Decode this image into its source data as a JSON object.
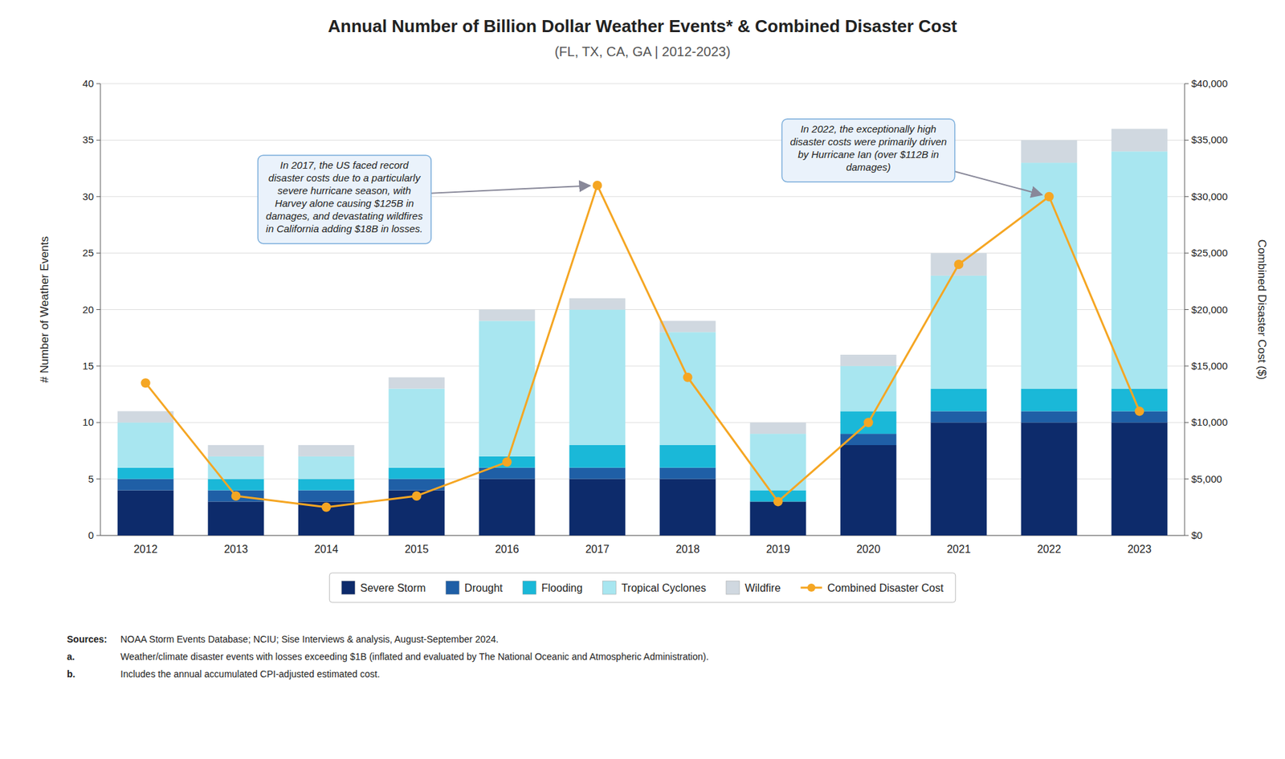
{
  "chart_data": {
    "type": "bar",
    "title": "Annual Number of Billion Dollar Weather Events* & Combined Disaster Cost",
    "subtitle": "(FL, TX, CA, GA | 2012-2023)",
    "categories": [
      "2012",
      "2013",
      "2014",
      "2015",
      "2016",
      "2017",
      "2018",
      "2019",
      "2020",
      "2021",
      "2022",
      "2023"
    ],
    "stacked": true,
    "series": [
      {
        "name": "Severe Storm",
        "color": "#0d2b6b",
        "values": [
          4,
          3,
          3,
          4,
          5,
          5,
          5,
          3,
          8,
          10,
          10,
          10
        ]
      },
      {
        "name": "Drought",
        "color": "#1f5fa6",
        "values": [
          1,
          1,
          1,
          1,
          1,
          1,
          1,
          0,
          1,
          1,
          1,
          1
        ]
      },
      {
        "name": "Flooding",
        "color": "#1ab8d8",
        "values": [
          1,
          1,
          1,
          1,
          1,
          2,
          2,
          1,
          2,
          2,
          2,
          2
        ]
      },
      {
        "name": "Tropical Cyclones",
        "color": "#a8e6f0",
        "values": [
          4,
          2,
          2,
          7,
          12,
          12,
          10,
          5,
          4,
          10,
          20,
          21
        ]
      },
      {
        "name": "Wildfire",
        "color": "#d0d8e0",
        "values": [
          1,
          1,
          1,
          1,
          1,
          1,
          1,
          1,
          1,
          2,
          2,
          2
        ]
      },
      {
        "name": "Combined Disaster Cost",
        "type": "line",
        "axis": "y2",
        "color": "#f5a623",
        "marker": "circle",
        "values": [
          13500,
          3500,
          2500,
          3500,
          6500,
          31000,
          14000,
          3000,
          10000,
          24000,
          30000,
          11000
        ]
      }
    ],
    "ylabel": "# Number of Weather Events",
    "y2label": "Combined Disaster Cost ($)",
    "ylim": [
      0,
      40
    ],
    "yticks": [
      0,
      5,
      10,
      15,
      20,
      25,
      30,
      35,
      40
    ],
    "y2lim": [
      0,
      40000
    ],
    "y2ticks": [
      {
        "value": 0,
        "label": "$0"
      },
      {
        "value": 5000,
        "label": "$5,000"
      },
      {
        "value": 10000,
        "label": "$10,000"
      },
      {
        "value": 15000,
        "label": "$15,000"
      },
      {
        "value": 20000,
        "label": "$20,000"
      },
      {
        "value": 25000,
        "label": "$25,000"
      },
      {
        "value": 30000,
        "label": "$30,000"
      },
      {
        "value": 35000,
        "label": "$35,000"
      },
      {
        "value": 40000,
        "label": "$40,000"
      }
    ],
    "grid": true,
    "legend": "bottom",
    "annotations": [
      {
        "text": "In 2017, the US faced record\ndisaster costs due to a particularly\nsevere hurricane season, with\nHarvey alone causing $125B in\ndamages, and devastating wildfires\nin California adding $18B in losses.",
        "x": "2017"
      },
      {
        "text": "In 2022, the exceptionally high\ndisaster costs were primarily driven\nby Hurricane Ian (over $112B in\ndamages)",
        "x": "2022"
      }
    ],
    "notes": [
      {
        "label": "Sources:",
        "text": "NOAA Storm Events Database; NCIU; Sise Interviews & analysis, August-September 2024."
      },
      {
        "label": "a.",
        "text": "Weather/climate disaster events with losses exceeding $1B (inflated and evaluated by The National Oceanic and Atmospheric Administration)."
      },
      {
        "label": "b.",
        "text": "Includes the annual accumulated CPI-adjusted estimated cost."
      }
    ]
  }
}
